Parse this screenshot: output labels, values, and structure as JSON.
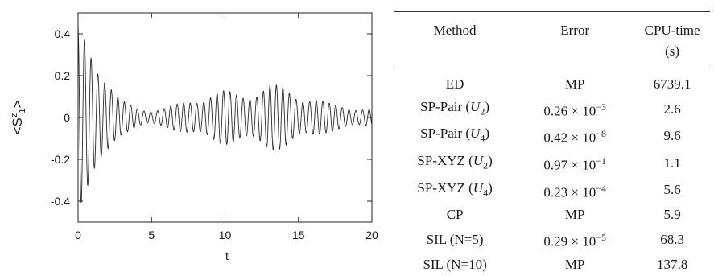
{
  "chart_data": [
    {
      "type": "line",
      "title": "",
      "xlabel": "t",
      "ylabel": "<S",
      "ylabel_sup": "z",
      "ylabel_sub": "1",
      "ylabel_end": ">",
      "xlim": [
        0,
        20
      ],
      "ylim": [
        -0.5,
        0.5
      ],
      "xticks": [
        0,
        5,
        10,
        15,
        20
      ],
      "yticks": [
        -0.4,
        -0.2,
        0,
        0.2,
        0.4
      ],
      "grid": false,
      "series_color": "#2b2b2b",
      "signal": {
        "description": "fast oscillation (period about 0.45) with a beating envelope: large at t=0, collapsing near t=4-6, revival peaking near t=13-14, decaying toward t=20",
        "carrier_period": 0.45,
        "envelope": [
          [
            0.0,
            0.45
          ],
          [
            0.5,
            0.42
          ],
          [
            1.0,
            0.38
          ],
          [
            1.5,
            0.3
          ],
          [
            2.0,
            0.2
          ],
          [
            2.5,
            0.12
          ],
          [
            3.0,
            0.08
          ],
          [
            4.0,
            0.05
          ],
          [
            5.0,
            0.04
          ],
          [
            6.0,
            0.05
          ],
          [
            7.0,
            0.07
          ],
          [
            8.0,
            0.1
          ],
          [
            9.0,
            0.12
          ],
          [
            10.0,
            0.13
          ],
          [
            11.0,
            0.12
          ],
          [
            12.0,
            0.14
          ],
          [
            13.0,
            0.16
          ],
          [
            14.0,
            0.15
          ],
          [
            15.0,
            0.12
          ],
          [
            16.0,
            0.1
          ],
          [
            17.0,
            0.07
          ],
          [
            18.0,
            0.06
          ],
          [
            19.0,
            0.05
          ],
          [
            20.0,
            0.04
          ]
        ]
      }
    },
    {
      "type": "table",
      "columns": [
        "Method",
        "Error",
        "CPU-time (s)"
      ],
      "rows": [
        {
          "method": "ED",
          "error": "MP",
          "cpu": "6739.1"
        },
        {
          "method": "SP-Pair (U2)",
          "error": "0.26 × 10^-3",
          "cpu": "2.6"
        },
        {
          "method": "SP-Pair (U4)",
          "error": "0.42 × 10^-8",
          "cpu": "9.6"
        },
        {
          "method": "SP-XYZ (U2)",
          "error": "0.97 × 10^-1",
          "cpu": "1.1"
        },
        {
          "method": "SP-XYZ (U4)",
          "error": "0.23 × 10^-4",
          "cpu": "5.6"
        },
        {
          "method": "CP",
          "error": "MP",
          "cpu": "5.9"
        },
        {
          "method": "SIL (N=5)",
          "error": "0.29 × 10^-5",
          "cpu": "68.3"
        },
        {
          "method": "SIL (N=10)",
          "error": "MP",
          "cpu": "137.8"
        }
      ]
    }
  ],
  "table": {
    "header": {
      "method": "Method",
      "error": "Error",
      "cpu_line1": "CPU-time",
      "cpu_line2": "(s)"
    },
    "rows": [
      {
        "name": "ED",
        "op_sub": "",
        "tail": "",
        "mantissa": "",
        "exp": "",
        "text": "MP",
        "cpu": "6739.1"
      },
      {
        "name": "SP-Pair (",
        "op_sub": "2",
        "tail": ")",
        "mantissa": "0.26",
        "exp": "−3",
        "text": "",
        "cpu": "2.6"
      },
      {
        "name": "SP-Pair (",
        "op_sub": "4",
        "tail": ")",
        "mantissa": "0.42",
        "exp": "−8",
        "text": "",
        "cpu": "9.6"
      },
      {
        "name": "SP-XYZ (",
        "op_sub": "2",
        "tail": ")",
        "mantissa": "0.97",
        "exp": "−1",
        "text": "",
        "cpu": "1.1"
      },
      {
        "name": "SP-XYZ (",
        "op_sub": "4",
        "tail": ")",
        "mantissa": "0.23",
        "exp": "−4",
        "text": "",
        "cpu": "5.6"
      },
      {
        "name": "CP",
        "op_sub": "",
        "tail": "",
        "mantissa": "",
        "exp": "",
        "text": "MP",
        "cpu": "5.9"
      },
      {
        "name": "SIL (N=5)",
        "op_sub": "",
        "tail": "",
        "mantissa": "0.29",
        "exp": "−5",
        "text": "",
        "cpu": "68.3"
      },
      {
        "name": "SIL (N=10)",
        "op_sub": "",
        "tail": "",
        "mantissa": "",
        "exp": "",
        "text": "MP",
        "cpu": "137.8"
      }
    ],
    "operator_letter": "U",
    "times_symbol": " × 10"
  }
}
